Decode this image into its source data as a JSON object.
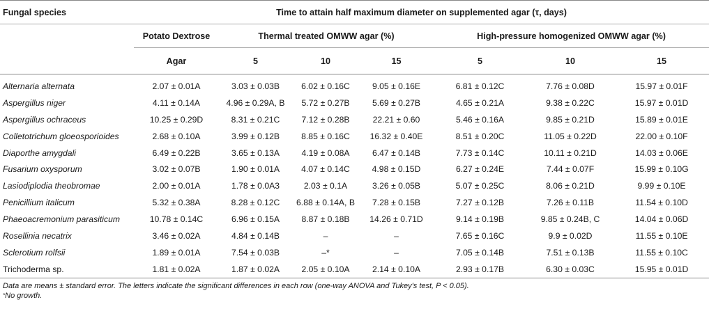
{
  "header": {
    "species_label": "Fungal species",
    "main_title": "Time to attain half maximum diameter on supplemented agar (τ, days)",
    "pda_line1": "Potato Dextrose",
    "pda_line2": "Agar",
    "thermal_label": "Thermal treated OMWW agar (%)",
    "hph_label": "High-pressure homogenized OMWW agar (%)",
    "concentrations": [
      "5",
      "10",
      "15",
      "5",
      "10",
      "15"
    ]
  },
  "rows": [
    {
      "species": "Alternaria alternata",
      "italic": true,
      "values": [
        "2.07 ± 0.01A",
        "3.03 ± 0.03B",
        "6.02 ± 0.16C",
        "9.05 ± 0.16E",
        "6.81 ± 0.12C",
        "7.76 ± 0.08D",
        "15.97 ± 0.01F"
      ]
    },
    {
      "species": "Aspergillus niger",
      "italic": true,
      "values": [
        "4.11 ± 0.14A",
        "4.96 ± 0.29A, B",
        "5.72 ± 0.27B",
        "5.69 ± 0.27B",
        "4.65 ± 0.21A",
        "9.38 ± 0.22C",
        "15.97 ± 0.01D"
      ]
    },
    {
      "species": "Aspergillus ochraceus",
      "italic": true,
      "values": [
        "10.25 ± 0.29D",
        "8.31 ± 0.21C",
        "7.12 ± 0.28B",
        "22.21 ± 0.60",
        "5.46 ± 0.16A",
        "9.85 ± 0.21D",
        "15.89 ± 0.01E"
      ]
    },
    {
      "species": "Colletotrichum gloeosporioides",
      "italic": true,
      "values": [
        "2.68 ± 0.10A",
        "3.99 ± 0.12B",
        "8.85 ± 0.16C",
        "16.32 ± 0.40E",
        "8.51 ± 0.20C",
        "11.05 ± 0.22D",
        "22.00 ± 0.10F"
      ]
    },
    {
      "species": "Diaporthe amygdali",
      "italic": true,
      "values": [
        "6.49 ± 0.22B",
        "3.65 ± 0.13A",
        "4.19 ± 0.08A",
        "6.47 ± 0.14B",
        "7.73 ± 0.14C",
        "10.11 ± 0.21D",
        "14.03 ± 0.06E"
      ]
    },
    {
      "species": "Fusarium oxysporum",
      "italic": true,
      "values": [
        "3.02 ± 0.07B",
        "1.90 ± 0.01A",
        "4.07 ± 0.14C",
        "4.98 ± 0.15D",
        "6.27 ± 0.24E",
        "7.44 ± 0.07F",
        "15.99 ± 0.10G"
      ]
    },
    {
      "species": "Lasiodiplodia theobromae",
      "italic": true,
      "values": [
        "2.00 ± 0.01A",
        "1.78 ± 0.0A3",
        "2.03 ± 0.1A",
        "3.26 ± 0.05B",
        "5.07 ± 0.25C",
        "8.06 ± 0.21D",
        "9.99 ± 0.10E"
      ]
    },
    {
      "species": "Penicillium italicum",
      "italic": true,
      "values": [
        "5.32 ± 0.38A",
        "8.28 ± 0.12C",
        "6.88 ± 0.14A, B",
        "7.28 ± 0.15B",
        "7.27 ± 0.12B",
        "7.26 ± 0.11B",
        "11.54 ± 0.10D"
      ]
    },
    {
      "species": "Phaeoacremonium parasiticum",
      "italic": true,
      "values": [
        "10.78 ± 0.14C",
        "6.96 ± 0.15A",
        "8.87 ± 0.18B",
        "14.26 ± 0.71D",
        "9.14 ± 0.19B",
        "9.85 ± 0.24B, C",
        "14.04 ± 0.06D"
      ]
    },
    {
      "species": "Rosellinia necatrix",
      "italic": true,
      "values": [
        "3.46 ± 0.02A",
        "4.84 ± 0.14B",
        "–",
        "–",
        "7.65 ± 0.16C",
        "9.9 ± 0.02D",
        "11.55 ± 0.10E"
      ]
    },
    {
      "species": "Sclerotium rolfsii",
      "italic": true,
      "values": [
        "1.89 ± 0.01A",
        "7.54 ± 0.03B",
        "–*",
        "–",
        "7.05 ± 0.14B",
        "7.51 ± 0.13B",
        "11.55 ± 0.10C"
      ]
    },
    {
      "species": "Trichoderma sp.",
      "italic": false,
      "values": [
        "1.81 ± 0.02A",
        "1.87 ± 0.02A",
        "2.05 ± 0.10A",
        "2.14 ± 0.10A",
        "2.93 ± 0.17B",
        "6.30 ± 0.03C",
        "15.95 ± 0.01D"
      ]
    }
  ],
  "footnotes": {
    "note1": "Data are means ± standard error. The letters indicate the significant differences in each row (one-way ANOVA and Tukey's test, P < 0.05).",
    "note2_marker": "*",
    "note2": "No growth."
  }
}
